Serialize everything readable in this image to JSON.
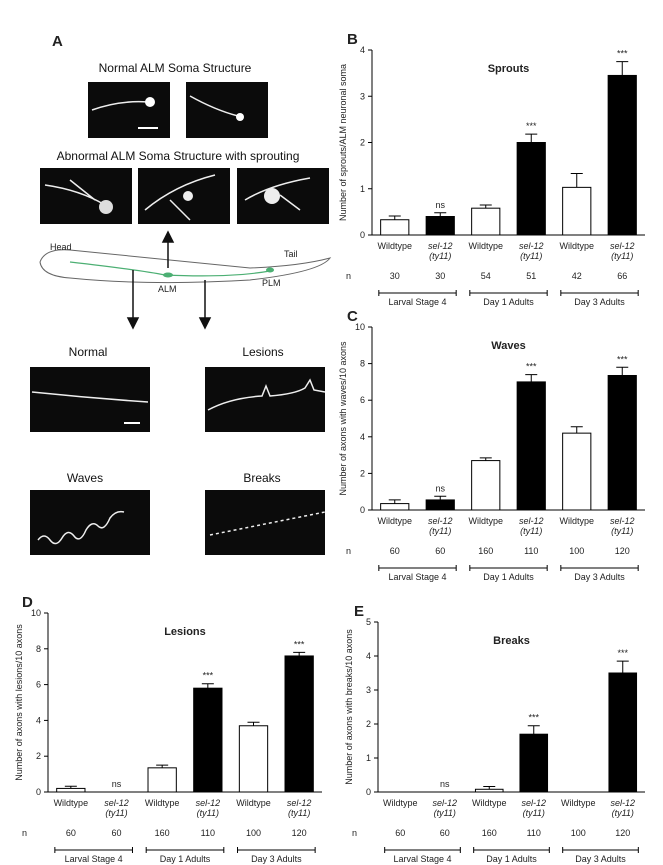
{
  "panel_a": {
    "letter": "A",
    "normal_title": "Normal ALM Soma Structure",
    "abnormal_title": "Abnormal ALM Soma Structure with sprouting",
    "head": "Head",
    "tail": "Tail",
    "alm": "ALM",
    "plm": "PLM",
    "normal": "Normal",
    "lesions": "Lesions",
    "waves": "Waves",
    "breaks": "Breaks"
  },
  "chart_data": [
    {
      "type": "bar",
      "panel": "B",
      "title": "Sprouts",
      "y_label": "Number of sprouts/ALM neuronal soma",
      "categories": [
        [
          "Wildtype"
        ],
        [
          "sel-12",
          "(ty11)"
        ],
        [
          "Wildtype"
        ],
        [
          "sel-12",
          "(ty11)"
        ],
        [
          "Wildtype"
        ],
        [
          "sel-12",
          "(ty11)"
        ]
      ],
      "values": [
        0.33,
        0.4,
        0.58,
        2.0,
        1.03,
        3.45
      ],
      "errors": [
        0.08,
        0.08,
        0.07,
        0.18,
        0.3,
        0.3
      ],
      "significance": [
        null,
        "ns",
        null,
        "***",
        null,
        "***"
      ],
      "colors": [
        "#ffffff",
        "#000000",
        "#ffffff",
        "#000000",
        "#ffffff",
        "#000000"
      ],
      "n_label": "n",
      "n": [
        30,
        30,
        54,
        51,
        42,
        66
      ],
      "groups": [
        "Larval Stage 4",
        "Day 1 Adults",
        "Day 3 Adults"
      ],
      "ylim": [
        0,
        4
      ],
      "yticks": [
        0,
        1,
        2,
        3,
        4
      ]
    },
    {
      "type": "bar",
      "panel": "C",
      "title": "Waves",
      "y_label": "Number of axons with waves/10 axons",
      "categories": [
        [
          "Wildtype"
        ],
        [
          "sel-12",
          "(ty11)"
        ],
        [
          "Wildtype"
        ],
        [
          "sel-12",
          "(ty11)"
        ],
        [
          "Wildtype"
        ],
        [
          "sel-12",
          "(ty11)"
        ]
      ],
      "values": [
        0.35,
        0.55,
        2.7,
        7.0,
        4.2,
        7.35
      ],
      "errors": [
        0.2,
        0.2,
        0.15,
        0.4,
        0.35,
        0.45
      ],
      "significance": [
        null,
        "ns",
        null,
        "***",
        null,
        "***"
      ],
      "colors": [
        "#ffffff",
        "#000000",
        "#ffffff",
        "#000000",
        "#ffffff",
        "#000000"
      ],
      "n_label": "n",
      "n": [
        60,
        60,
        160,
        110,
        100,
        120
      ],
      "groups": [
        "Larval Stage 4",
        "Day 1 Adults",
        "Day 3 Adults"
      ],
      "ylim": [
        0,
        10
      ],
      "yticks": [
        0,
        2,
        4,
        6,
        8,
        10
      ]
    },
    {
      "type": "bar",
      "panel": "D",
      "title": "Lesions",
      "y_label": "Number of axons with lesions/10 axons",
      "categories": [
        [
          "Wildtype"
        ],
        [
          "sel-12",
          "(ty11)"
        ],
        [
          "Wildtype"
        ],
        [
          "sel-12",
          "(ty11)"
        ],
        [
          "Wildtype"
        ],
        [
          "sel-12",
          "(ty11)"
        ]
      ],
      "values": [
        0.2,
        0,
        1.35,
        5.8,
        3.7,
        7.6
      ],
      "errors": [
        0.12,
        null,
        0.15,
        0.25,
        0.2,
        0.2
      ],
      "significance": [
        null,
        "ns",
        null,
        "***",
        null,
        "***"
      ],
      "colors": [
        "#ffffff",
        "#000000",
        "#ffffff",
        "#000000",
        "#ffffff",
        "#000000"
      ],
      "n_label": "n",
      "n": [
        60,
        60,
        160,
        110,
        100,
        120
      ],
      "groups": [
        "Larval Stage 4",
        "Day 1 Adults",
        "Day 3 Adults"
      ],
      "ylim": [
        0,
        10
      ],
      "yticks": [
        0,
        2,
        4,
        6,
        8,
        10
      ]
    },
    {
      "type": "bar",
      "panel": "E",
      "title": "Breaks",
      "y_label": "Number of axons with breaks/10 axons",
      "categories": [
        [
          "Wildtype"
        ],
        [
          "sel-12",
          "(ty11)"
        ],
        [
          "Wildtype"
        ],
        [
          "sel-12",
          "(ty11)"
        ],
        [
          "Wildtype"
        ],
        [
          "sel-12",
          "(ty11)"
        ]
      ],
      "values": [
        0,
        0,
        0.08,
        1.7,
        0,
        3.5
      ],
      "errors": [
        null,
        null,
        0.08,
        0.25,
        null,
        0.35
      ],
      "significance": [
        null,
        "ns",
        null,
        "***",
        null,
        "***"
      ],
      "colors": [
        "#ffffff",
        "#000000",
        "#ffffff",
        "#000000",
        "#ffffff",
        "#000000"
      ],
      "n_label": "n",
      "n": [
        60,
        60,
        160,
        110,
        100,
        120
      ],
      "groups": [
        "Larval Stage 4",
        "Day 1 Adults",
        "Day 3 Adults"
      ],
      "ylim": [
        0,
        5
      ],
      "yticks": [
        0,
        1,
        2,
        3,
        4,
        5
      ]
    }
  ]
}
